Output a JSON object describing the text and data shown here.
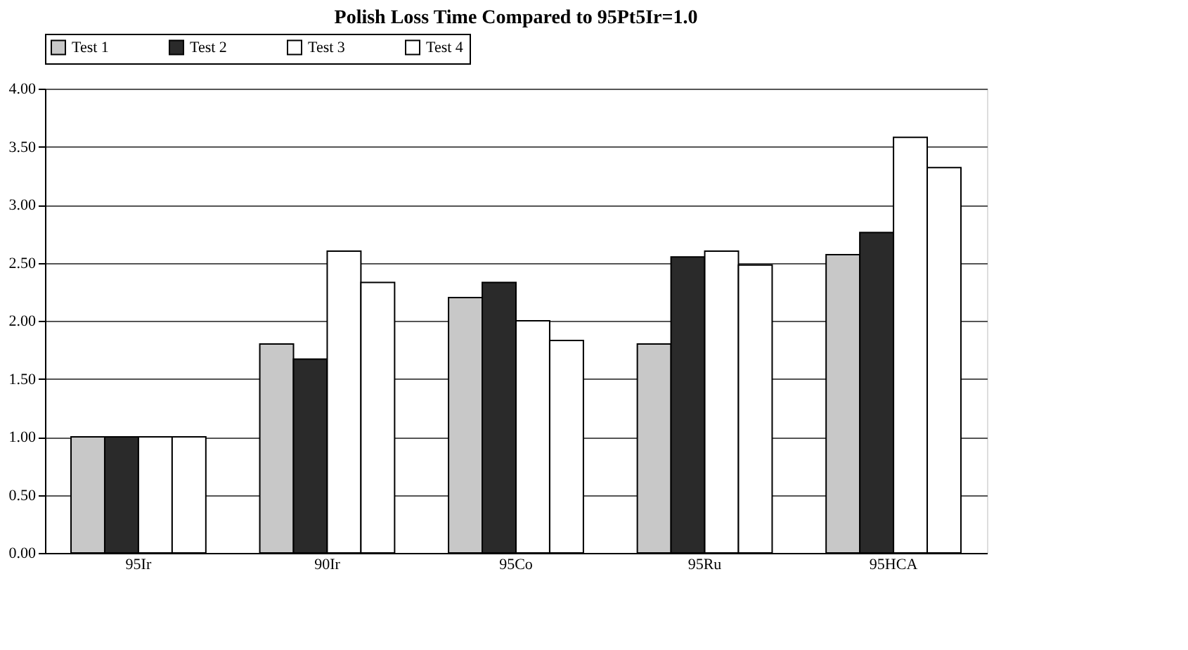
{
  "chart_data": {
    "type": "bar",
    "title": "Polish Loss Time Compared to 95Pt5Ir=1.0",
    "categories": [
      "95Ir",
      "90Ir",
      "95Co",
      "95Ru",
      "95HCA"
    ],
    "series": [
      {
        "name": "Test 1",
        "color": "#c8c8c8",
        "values": [
          1.0,
          1.8,
          2.2,
          1.8,
          2.57
        ]
      },
      {
        "name": "Test 2",
        "color": "#2a2a2a",
        "values": [
          1.0,
          1.67,
          2.33,
          2.55,
          2.76
        ]
      },
      {
        "name": "Test 3",
        "color": "#ffffff",
        "values": [
          1.0,
          2.6,
          2.0,
          2.6,
          3.58
        ]
      },
      {
        "name": "Test 4",
        "color": "#ffffff",
        "values": [
          1.0,
          2.33,
          1.83,
          2.48,
          3.32
        ]
      }
    ],
    "ylim": [
      0,
      4
    ],
    "yticks": [
      {
        "value": 0,
        "label": "0.00"
      },
      {
        "value": 0.5,
        "label": "0.50"
      },
      {
        "value": 1,
        "label": "1.00"
      },
      {
        "value": 1.5,
        "label": "1.50"
      },
      {
        "value": 2,
        "label": "2.00"
      },
      {
        "value": 2.5,
        "label": "2.50"
      },
      {
        "value": 3,
        "label": "3.00"
      },
      {
        "value": 3.5,
        "label": "3.50"
      },
      {
        "value": 4,
        "label": "4.00"
      }
    ],
    "grid": "y",
    "legend": "top"
  }
}
